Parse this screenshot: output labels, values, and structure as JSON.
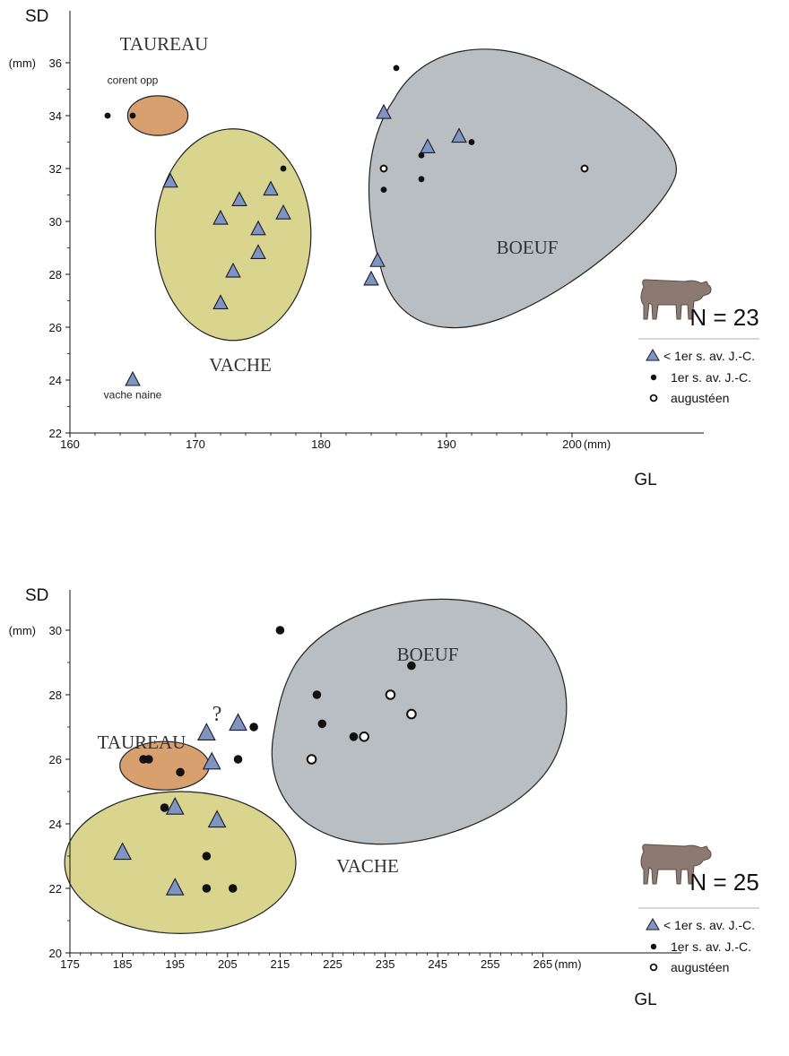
{
  "colors": {
    "taureau_fill": "#d9a06f",
    "vache_fill": "#d9d48e",
    "boeuf_fill": "#b8bec2",
    "triangle_fill": "#7f95c1",
    "point_dark": "#111111",
    "cow": "#8c7a72"
  },
  "legend": {
    "triangle": "< 1er s. av. J.-C.",
    "dot": "1er s. av. J.-C.",
    "open": "augustéen"
  },
  "chart_data": [
    {
      "type": "scatter",
      "ylabel": "SD",
      "yunit": "(mm)",
      "xlabel": "GL",
      "xunit": "(mm)",
      "xlim": [
        160,
        205
      ],
      "ylim": [
        22,
        36
      ],
      "xticks": [
        160,
        170,
        180,
        190,
        200
      ],
      "yticks": [
        22,
        24,
        26,
        28,
        30,
        32,
        34,
        36
      ],
      "n_label": "N = 23",
      "groups": [
        {
          "name": "TAUREAU",
          "center": [
            167,
            34
          ],
          "radius": [
            2.4,
            0.75
          ]
        },
        {
          "name": "VACHE",
          "center": [
            173,
            29.5
          ],
          "radius": [
            6.2,
            4.0
          ]
        },
        {
          "name": "BOEUF",
          "center": [
            191,
            30.4
          ],
          "radius": [
            11.0,
            6.4
          ]
        }
      ],
      "annotations": [
        {
          "text": "corent opp",
          "x": 165,
          "y": 35.2
        },
        {
          "text": "vache naine",
          "x": 165,
          "y": 23.3
        }
      ],
      "series": [
        {
          "name": "< 1er s. av. J.-C.",
          "marker": "triangle",
          "points": [
            [
              168,
              31.5
            ],
            [
              172,
              30.1
            ],
            [
              173.5,
              30.8
            ],
            [
              176,
              31.2
            ],
            [
              175,
              29.7
            ],
            [
              177,
              30.3
            ],
            [
              175,
              28.8
            ],
            [
              173,
              28.1
            ],
            [
              172,
              26.9
            ],
            [
              165,
              24.0
            ],
            [
              185,
              34.1
            ],
            [
              188.5,
              32.8
            ],
            [
              191,
              33.2
            ],
            [
              184.5,
              28.5
            ],
            [
              184,
              27.8
            ]
          ]
        },
        {
          "name": "1er s. av. J.-C.",
          "marker": "dot",
          "points": [
            [
              163,
              34
            ],
            [
              165,
              34
            ],
            [
              177,
              32
            ],
            [
              186,
              35.8
            ],
            [
              192,
              33
            ],
            [
              188,
              32.5
            ],
            [
              188,
              31.6
            ],
            [
              185,
              31.2
            ]
          ]
        },
        {
          "name": "augustéen",
          "marker": "open",
          "points": [
            [
              185,
              32
            ],
            [
              201,
              32
            ]
          ]
        }
      ]
    },
    {
      "type": "scatter",
      "ylabel": "SD",
      "yunit": "(mm)",
      "xlabel": "GL",
      "xunit": "(mm)",
      "xlim": [
        175,
        265
      ],
      "ylim": [
        20,
        30
      ],
      "xticks": [
        175,
        185,
        195,
        205,
        215,
        225,
        235,
        245,
        255,
        265
      ],
      "yticks": [
        20,
        22,
        24,
        26,
        28,
        30
      ],
      "n_label": "N = 25",
      "groups": [
        {
          "name": "TAUREAU",
          "center": [
            193,
            25.8
          ],
          "radius": [
            8.5,
            0.75
          ]
        },
        {
          "name": "VACHE",
          "center": [
            196,
            22.8
          ],
          "radius": [
            22.0,
            2.2
          ]
        },
        {
          "name": "BOEUF",
          "center": [
            226,
            27.0
          ],
          "radius": [
            26.0,
            3.55
          ]
        }
      ],
      "annotations": [
        {
          "text": "?",
          "x": 203,
          "y": 27.2
        }
      ],
      "series": [
        {
          "name": "< 1er s. av. J.-C.",
          "marker": "triangle",
          "points": [
            [
              201,
              26.8
            ],
            [
              202,
              25.9
            ],
            [
              207,
              27.1
            ],
            [
              185,
              23.1
            ],
            [
              195,
              24.5
            ],
            [
              203,
              24.1
            ],
            [
              195,
              22
            ]
          ]
        },
        {
          "name": "1er s. av. J.-C.",
          "marker": "dot",
          "points": [
            [
              215,
              30
            ],
            [
              222,
              28
            ],
            [
              240,
              28.9
            ],
            [
              210,
              27
            ],
            [
              223,
              27.1
            ],
            [
              229,
              26.7
            ],
            [
              207,
              26
            ],
            [
              189,
              26
            ],
            [
              190,
              26
            ],
            [
              196,
              25.6
            ],
            [
              193,
              24.5
            ],
            [
              201,
              23
            ],
            [
              201,
              22
            ],
            [
              206,
              22
            ]
          ]
        },
        {
          "name": "augustéen",
          "marker": "open",
          "points": [
            [
              236,
              28
            ],
            [
              240,
              27.4
            ],
            [
              231,
              26.7
            ],
            [
              221,
              26
            ]
          ]
        }
      ]
    }
  ]
}
